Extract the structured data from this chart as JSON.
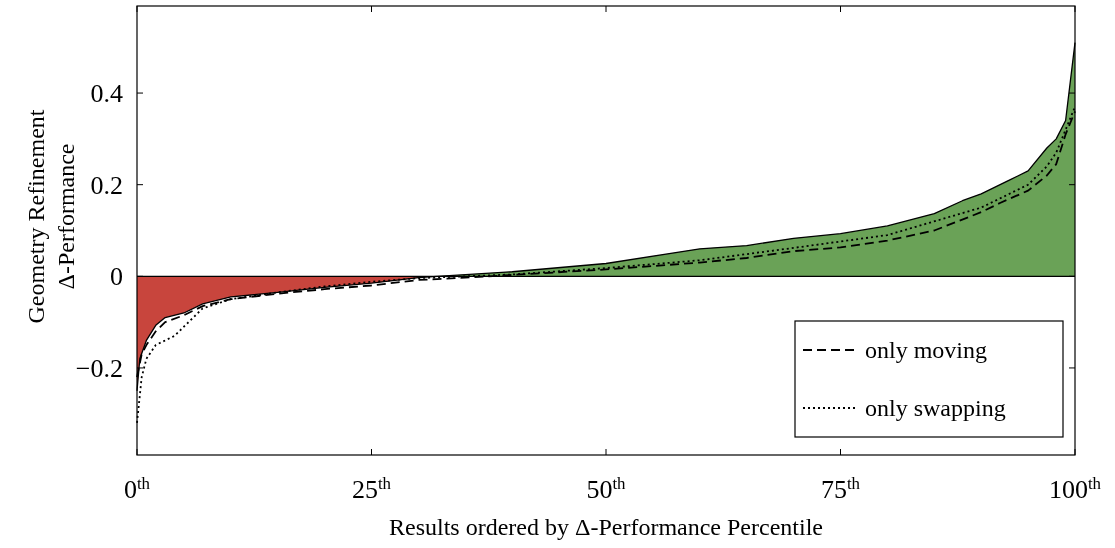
{
  "chart_data": {
    "type": "area",
    "xlabel": "Results ordered by Δ-Performance Percentile",
    "ylabel": "Geometry Refinement\nΔ-Performance",
    "xlim": [
      0,
      100
    ],
    "xticks": [
      {
        "value": 0,
        "label": "0$^{th}$"
      },
      {
        "value": 25,
        "label": "25$^{th}$"
      },
      {
        "value": 50,
        "label": "50$^{th}$"
      },
      {
        "value": 75,
        "label": "75$^{th}$"
      },
      {
        "value": 100,
        "label": "100$^{th}$"
      }
    ],
    "ylim": [
      -0.39,
      0.59
    ],
    "yticks": [
      {
        "value": -0.2,
        "label": "−0.2"
      },
      0,
      0.2,
      0.4
    ],
    "legend": "bottom right",
    "ref_lines": [
      {
        "axis": "y",
        "value": 0,
        "color": "#000000"
      }
    ],
    "series": [
      {
        "color": "#c8453d",
        "x": [
          0,
          0.3,
          1,
          2,
          3,
          5,
          7,
          10,
          15,
          20,
          25,
          30,
          32
        ],
        "values": [
          -0.25,
          -0.18,
          -0.14,
          -0.107,
          -0.09,
          -0.08,
          -0.06,
          -0.045,
          -0.035,
          -0.024,
          -0.015,
          -0.003,
          0
        ]
      },
      {
        "color": "#6aa257",
        "x": [
          32,
          40,
          50,
          60,
          65,
          70,
          75,
          80,
          85,
          88,
          90,
          93,
          95,
          97,
          98,
          99,
          100
        ],
        "values": [
          0,
          0.01,
          0.028,
          0.06,
          0.067,
          0.083,
          0.093,
          0.11,
          0.137,
          0.165,
          0.18,
          0.21,
          0.23,
          0.28,
          0.3,
          0.34,
          0.51
        ]
      },
      {
        "type": "line",
        "name": "only moving",
        "color": "#000000",
        "line_style": "dashed",
        "x": [
          0,
          0.5,
          1,
          2,
          3,
          5,
          7,
          10,
          15,
          20,
          25,
          30,
          35,
          40,
          50,
          60,
          65,
          70,
          75,
          80,
          85,
          90,
          92,
          95,
          97,
          98,
          99,
          100
        ],
        "values": [
          -0.22,
          -0.17,
          -0.15,
          -0.12,
          -0.1,
          -0.085,
          -0.065,
          -0.05,
          -0.038,
          -0.028,
          -0.02,
          -0.008,
          -0.003,
          0.003,
          0.015,
          0.03,
          0.04,
          0.055,
          0.063,
          0.078,
          0.1,
          0.14,
          0.16,
          0.187,
          0.22,
          0.245,
          0.31,
          0.36
        ]
      },
      {
        "type": "line",
        "name": "only swapping",
        "color": "#000000",
        "line_style": "dotted",
        "x": [
          0,
          0.5,
          1,
          2,
          4,
          5,
          7,
          10,
          15,
          20,
          25,
          30,
          40,
          50,
          60,
          70,
          80,
          90,
          95,
          97,
          98,
          99,
          100
        ],
        "values": [
          -0.32,
          -0.22,
          -0.18,
          -0.15,
          -0.13,
          -0.11,
          -0.07,
          -0.05,
          -0.035,
          -0.022,
          -0.012,
          -0.004,
          0.004,
          0.018,
          0.035,
          0.062,
          0.09,
          0.15,
          0.2,
          0.24,
          0.27,
          0.32,
          0.37
        ]
      }
    ]
  }
}
